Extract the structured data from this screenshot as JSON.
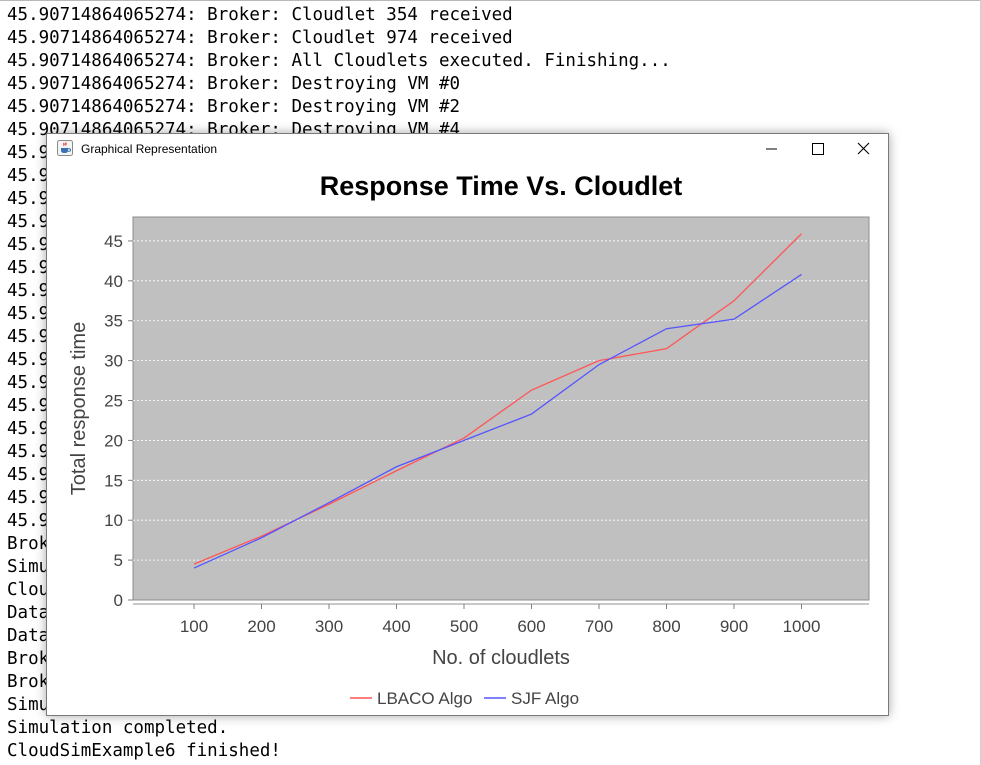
{
  "console": {
    "lines": [
      "45.90714864065274: Broker: Cloudlet 354 received",
      "45.90714864065274: Broker: Cloudlet 974 received",
      "45.90714864065274: Broker: All Cloudlets executed. Finishing...",
      "45.90714864065274: Broker: Destroying VM #0",
      "45.90714864065274: Broker: Destroying VM #2",
      "45.90714864065274: Broker: Destroying VM #4",
      "45.9",
      "45.9",
      "45.9",
      "45.9",
      "45.9",
      "45.9",
      "45.9",
      "45.9",
      "45.9",
      "45.9",
      "45.9",
      "45.9",
      "45.9",
      "45.9",
      "45.9",
      "45.9",
      "45.9",
      "Brok",
      "Simu",
      "Clou",
      "Data",
      "Data",
      "Brok",
      "Brok",
      "Simu",
      "Simulation completed.",
      "CloudSimExample6 finished!"
    ]
  },
  "window": {
    "title": "Graphical Representation",
    "icon": "java-cup-icon",
    "controls": [
      "minimize-icon",
      "maximize-icon",
      "close-icon"
    ]
  },
  "chart_data": {
    "type": "line",
    "title": "Response Time Vs. Cloudlet",
    "xlabel": "No. of cloudlets",
    "ylabel": "Total response time",
    "categories": [
      "100",
      "200",
      "300",
      "400",
      "500",
      "600",
      "700",
      "800",
      "900",
      "1000"
    ],
    "yticks": [
      "0",
      "5",
      "10",
      "15",
      "20",
      "25",
      "30",
      "35",
      "40",
      "45"
    ],
    "ylim": [
      0,
      48
    ],
    "grid": true,
    "legend_position": "bottom",
    "plot_background": "#c0c0c0",
    "series": [
      {
        "name": "LBACO Algo",
        "color": "#ff5555",
        "values": [
          4.5,
          8.0,
          12.0,
          16.2,
          20.3,
          26.3,
          30.0,
          31.5,
          37.5,
          45.9
        ]
      },
      {
        "name": "SJF Algo",
        "color": "#5555ff",
        "values": [
          4.0,
          7.8,
          12.2,
          16.7,
          20.0,
          23.3,
          29.5,
          34.0,
          35.2,
          40.8
        ]
      }
    ]
  }
}
